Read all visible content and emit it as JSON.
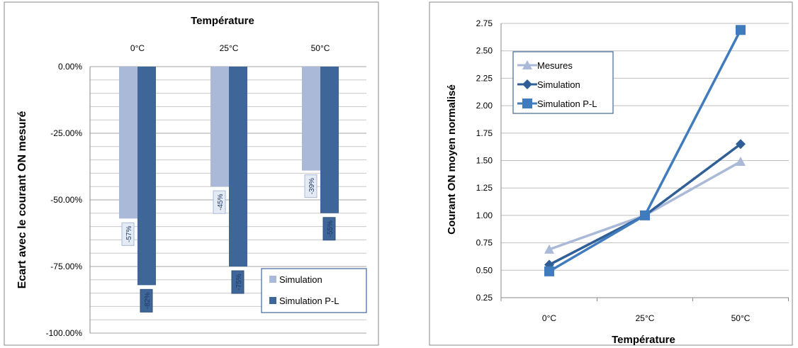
{
  "chart_data": [
    {
      "type": "bar",
      "title": "Température",
      "xlabel": "Température",
      "ylabel": "Ecart avec le courant ON mesuré",
      "categories": [
        "0°C",
        "25°C",
        "50°C"
      ],
      "ylim": [
        -100,
        0
      ],
      "yticks": [
        "0.00%",
        "-25.00%",
        "-50.00%",
        "-75.00%",
        "-100.00%"
      ],
      "ytick_values": [
        0,
        -25,
        -50,
        -75,
        -100
      ],
      "grid": true,
      "legend_position": "bottom-right",
      "series": [
        {
          "name": "Simulation",
          "values": [
            -57,
            -45,
            -39
          ],
          "labels": [
            "-57%",
            "-45%",
            "-39%"
          ],
          "color": "#a9b9d7"
        },
        {
          "name": "Simulation P-L",
          "values": [
            -82,
            -75,
            -55
          ],
          "labels": [
            "-82%",
            "-75%",
            "-55%"
          ],
          "color": "#3f6699"
        }
      ]
    },
    {
      "type": "line",
      "title": "",
      "xlabel": "Température",
      "ylabel": "Courant ON moyen normalisé",
      "categories": [
        "0°C",
        "25°C",
        "50°C"
      ],
      "ylim": [
        0.25,
        2.75
      ],
      "yticks": [
        "0.25",
        "0.50",
        "0.75",
        "1.00",
        "1.25",
        "1.50",
        "1.75",
        "2.00",
        "2.25",
        "2.50",
        "2.75"
      ],
      "ytick_values": [
        0.25,
        0.5,
        0.75,
        1.0,
        1.25,
        1.5,
        1.75,
        2.0,
        2.25,
        2.5,
        2.75
      ],
      "grid": true,
      "legend_position": "top-left",
      "series": [
        {
          "name": "Mesures",
          "values": [
            0.69,
            1.0,
            1.49
          ],
          "color": "#a9b9d7",
          "marker": "triangle"
        },
        {
          "name": "Simulation",
          "values": [
            0.55,
            1.0,
            1.65
          ],
          "color": "#2f5f96",
          "marker": "diamond"
        },
        {
          "name": "Simulation P-L",
          "values": [
            0.49,
            1.0,
            2.69
          ],
          "color": "#3f7bbd",
          "marker": "square"
        }
      ]
    }
  ]
}
